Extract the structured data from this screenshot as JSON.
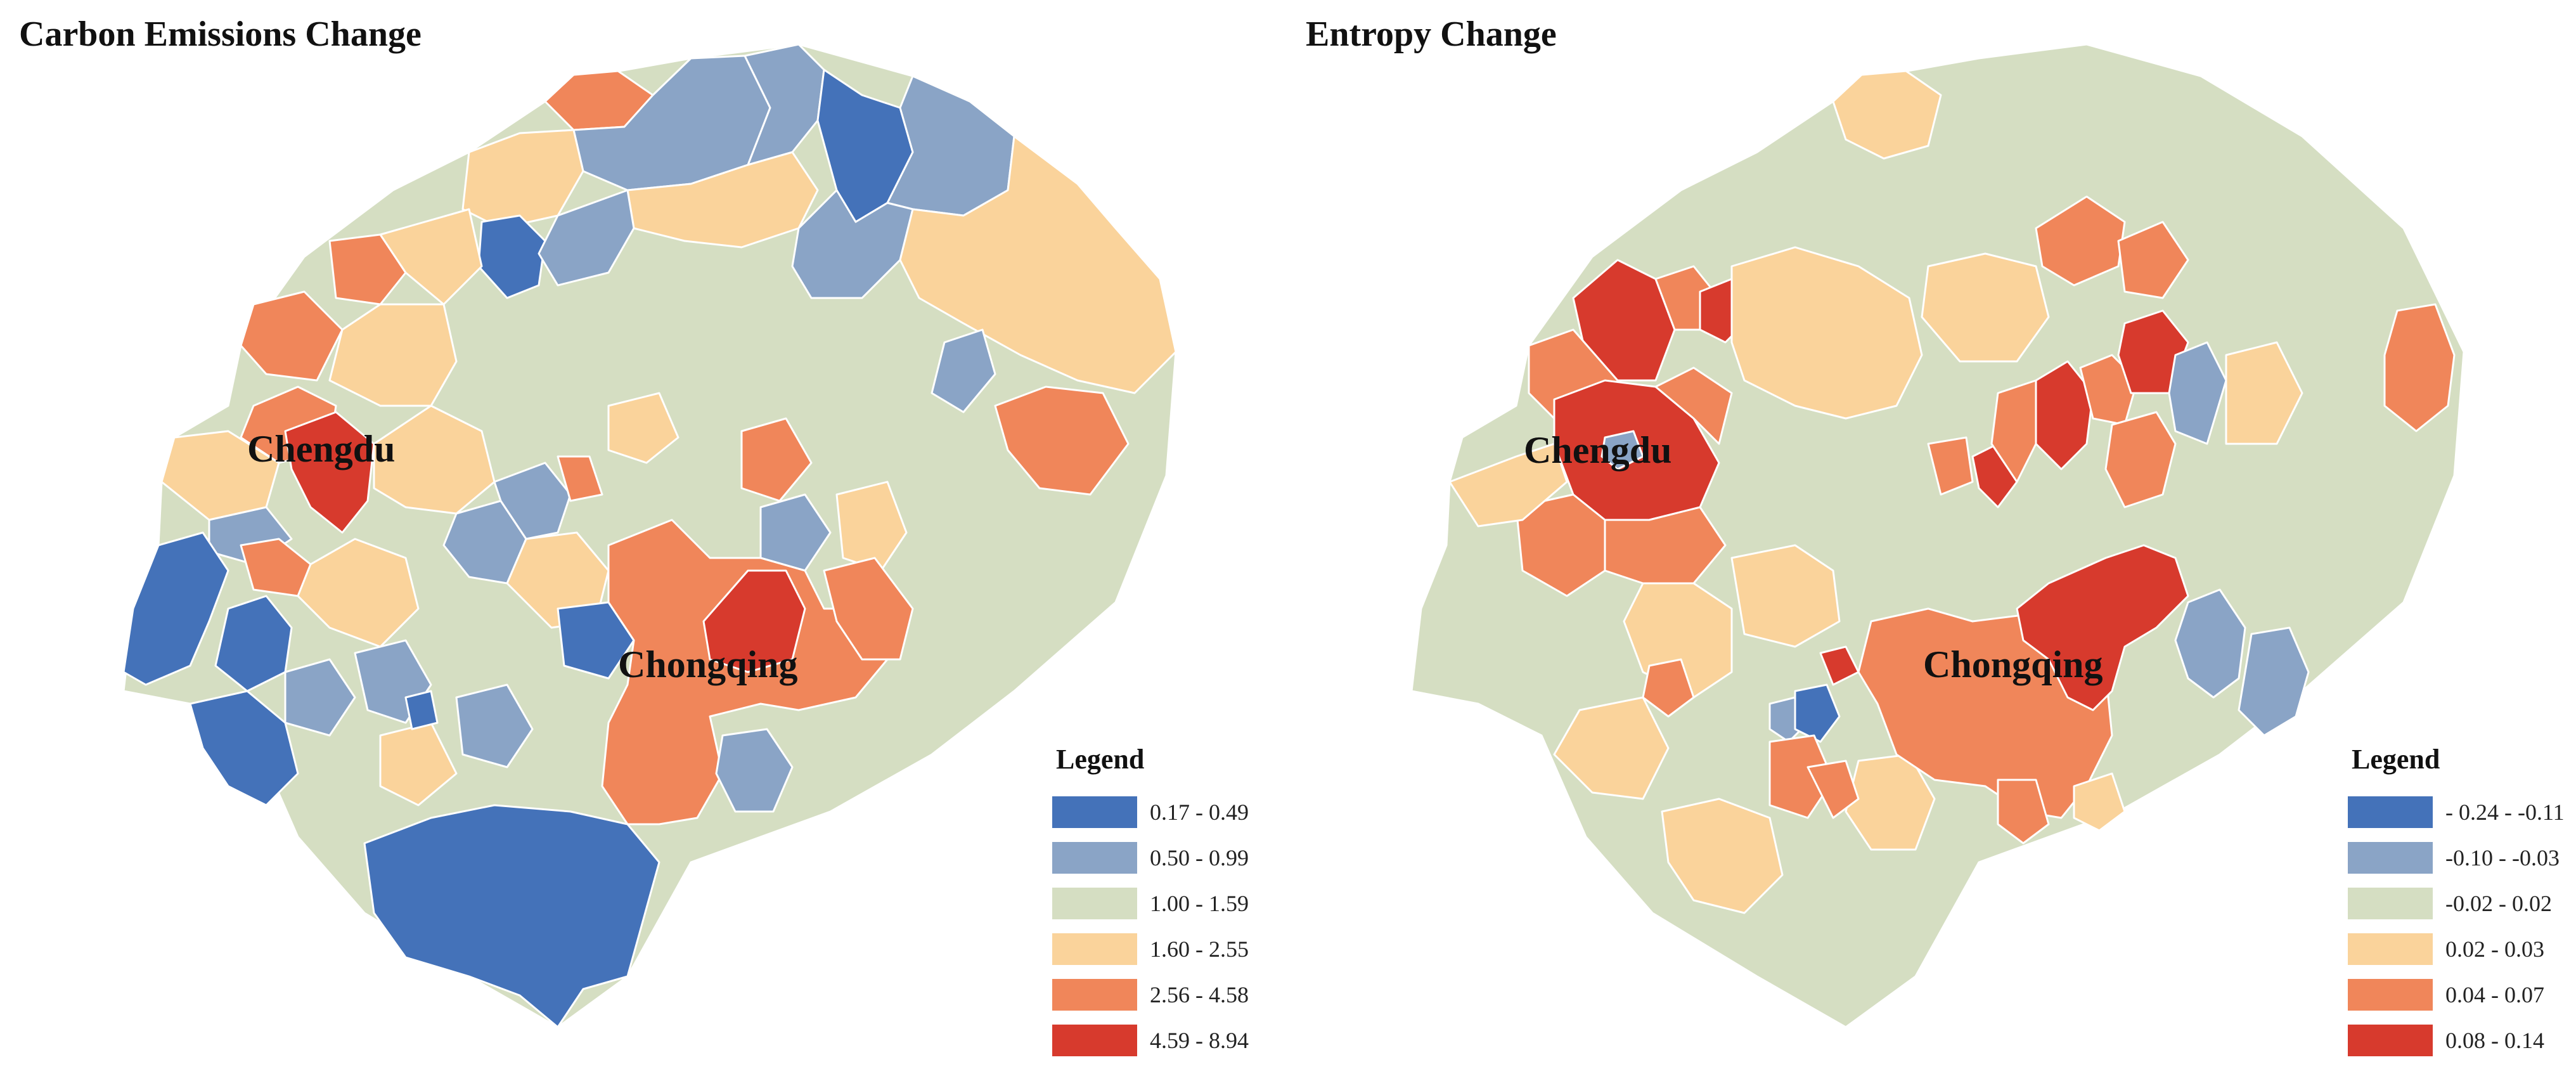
{
  "maps": [
    {
      "title": "Carbon Emissions Change",
      "city_labels": [
        "Chengdu",
        "Chongqing"
      ],
      "legend": {
        "title": "Legend",
        "classes": [
          {
            "label": "0.17 - 0.49",
            "color": "#4472b9"
          },
          {
            "label": "0.50 - 0.99",
            "color": "#8aa4c6"
          },
          {
            "label": "1.00 - 1.59",
            "color": "#d5dec2"
          },
          {
            "label": "1.60 - 2.55",
            "color": "#fad39b"
          },
          {
            "label": "2.56 - 4.58",
            "color": "#f0865a"
          },
          {
            "label": "4.59 - 8.94",
            "color": "#d73a2d"
          }
        ]
      }
    },
    {
      "title": "Entropy Change",
      "city_labels": [
        "Chengdu",
        "Chongqing"
      ],
      "legend": {
        "title": "Legend",
        "classes": [
          {
            "label": "- 0.24 - -0.11",
            "color": "#4472b9"
          },
          {
            "label": "-0.10 - -0.03",
            "color": "#8aa4c6"
          },
          {
            "label": "-0.02 - 0.02",
            "color": "#d5dec2"
          },
          {
            "label": "0.02 - 0.03",
            "color": "#fad39b"
          },
          {
            "label": "0.04 - 0.07",
            "color": "#f0865a"
          },
          {
            "label": "0.08 - 0.14",
            "color": "#d73a2d"
          }
        ]
      }
    }
  ]
}
